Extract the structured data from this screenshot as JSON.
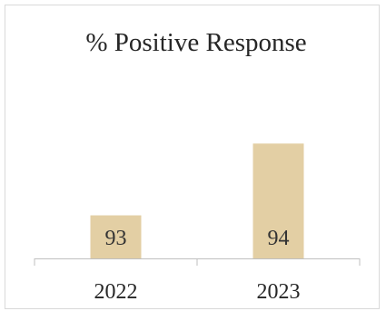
{
  "chart_data": {
    "type": "bar",
    "title": "% Positive Response",
    "xlabel": "",
    "ylabel": "",
    "categories": [
      "2022",
      "2023"
    ],
    "values": [
      93,
      94
    ],
    "ylim": [
      92.4,
      94.8
    ],
    "bar_color": "#e3cfa4",
    "axis_color": "#bfbfbf",
    "grid": false,
    "legend": "none"
  }
}
